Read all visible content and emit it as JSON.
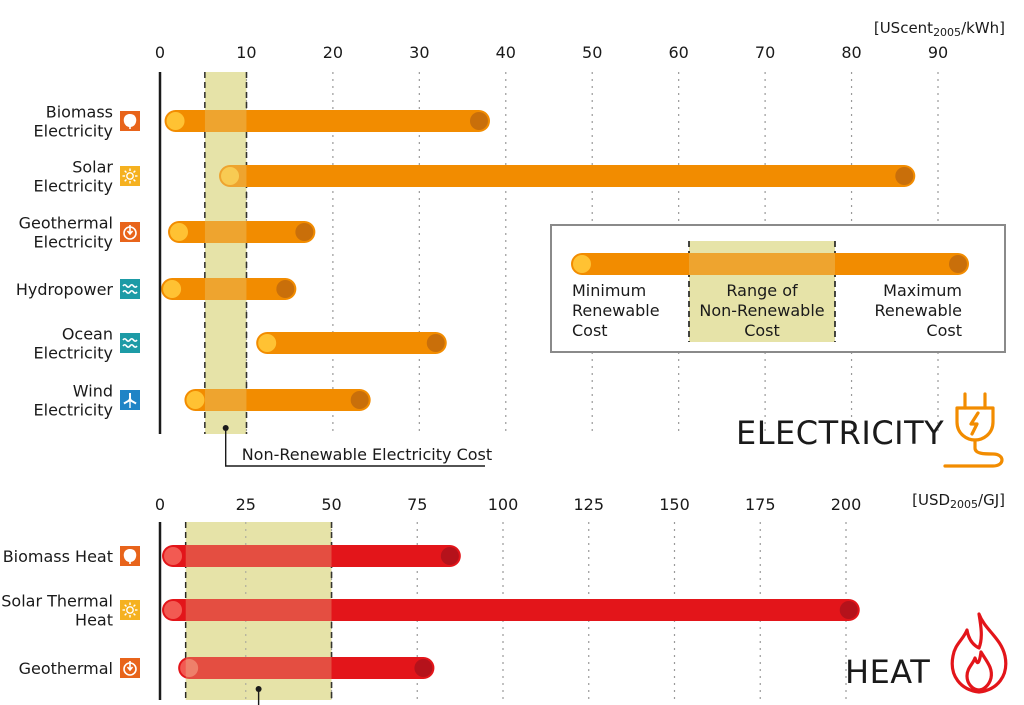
{
  "chart_data": [
    {
      "type": "bar",
      "subtype": "range",
      "section_title": "ELECTRICITY",
      "unit_label": "[UScent2005/kWh]",
      "xlim": [
        0,
        95
      ],
      "x_ticks": [
        0,
        10,
        20,
        30,
        40,
        50,
        60,
        70,
        80,
        90
      ],
      "grid": "dotted vertical",
      "bar_color": "#f28c00",
      "min_marker_color": "#ffc233",
      "max_marker_color": "#c96f0a",
      "categories": [
        {
          "label": [
            "Biomass",
            "Electricity"
          ],
          "icon": "leaf-icon",
          "icon_color": "#e8641b",
          "min": 1.8,
          "max": 36.9
        },
        {
          "label": [
            "Solar",
            "Electricity"
          ],
          "icon": "sun-icon",
          "icon_color": "#f5b120",
          "min": 8.1,
          "max": 86.1
        },
        {
          "label": [
            "Geothermal",
            "Electricity"
          ],
          "icon": "geothermal-icon",
          "icon_color": "#e8641b",
          "min": 2.2,
          "max": 16.7
        },
        {
          "label": [
            "Hydropower"
          ],
          "icon": "water-icon",
          "icon_color": "#1d9ba6",
          "min": 1.4,
          "max": 14.5
        },
        {
          "label": [
            "Ocean",
            "Electricity"
          ],
          "icon": "wave-icon",
          "icon_color": "#1d9ba6",
          "min": 12.4,
          "max": 31.9
        },
        {
          "label": [
            "Wind",
            "Electricity"
          ],
          "icon": "wind-turbine-icon",
          "icon_color": "#1f84c6",
          "min": 4.1,
          "max": 23.1
        }
      ],
      "non_renewable_range": [
        5.2,
        10
      ],
      "non_renewable_label": "Non-Renewable Electricity Cost"
    },
    {
      "type": "bar",
      "subtype": "range",
      "section_title": "HEAT",
      "unit_label": "[USD2005/GJ]",
      "xlim": [
        0,
        210
      ],
      "x_ticks": [
        0,
        25,
        50,
        75,
        100,
        125,
        150,
        175,
        200
      ],
      "grid": "dotted vertical",
      "bar_color": "#e3151a",
      "min_marker_color": "#f25a52",
      "max_marker_color": "#b5121b",
      "categories": [
        {
          "label": [
            "Biomass Heat"
          ],
          "icon": "leaf-icon",
          "icon_color": "#e8641b",
          "min": 3.8,
          "max": 84.5
        },
        {
          "label": [
            "Solar Thermal",
            "Heat"
          ],
          "icon": "sun-icon",
          "icon_color": "#f5b120",
          "min": 3.8,
          "max": 200.8
        },
        {
          "label": [
            "Geothermal"
          ],
          "icon": "geothermal-icon",
          "icon_color": "#e8641b",
          "min": 8.5,
          "max": 76.8
        }
      ],
      "non_renewable_range": [
        7.5,
        50
      ]
    }
  ],
  "legend": {
    "min_label": [
      "Minimum",
      "Renewable",
      "Cost"
    ],
    "range_label": [
      "Range of",
      "Non-Renewable",
      "Cost"
    ],
    "max_label": [
      "Maximum",
      "Renewable",
      "Cost"
    ]
  },
  "colors": {
    "band_fill": "#e6e3a8",
    "electricity_icon": "#f28c00",
    "heat_icon": "#e3151a",
    "grid": "#9a9a9a",
    "axis": "#1a1a1a"
  }
}
